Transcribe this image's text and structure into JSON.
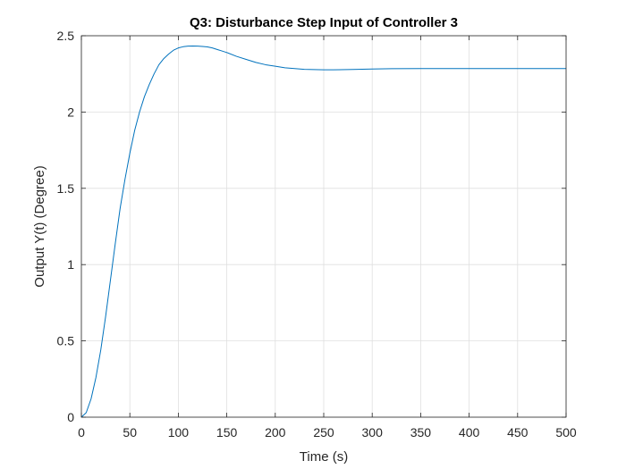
{
  "chart_data": {
    "type": "line",
    "title": "Q3: Disturbance Step Input of Controller 3",
    "xlabel": "Time (s)",
    "ylabel": "Output Y(t) (Degree)",
    "xlim": [
      0,
      500
    ],
    "ylim": [
      0,
      2.5
    ],
    "grid": true,
    "x_ticks": [
      0,
      50,
      100,
      150,
      200,
      250,
      300,
      350,
      400,
      450,
      500
    ],
    "y_ticks": [
      0,
      0.5,
      1,
      1.5,
      2,
      2.5
    ],
    "x_tick_labels": [
      "0",
      "50",
      "100",
      "150",
      "200",
      "250",
      "300",
      "350",
      "400",
      "450",
      "500"
    ],
    "y_tick_labels": [
      "0",
      "0.5",
      "1",
      "1.5",
      "2",
      "2.5"
    ],
    "series": [
      {
        "color": "#0072BD",
        "x": [
          0,
          5,
          10,
          15,
          20,
          25,
          30,
          35,
          40,
          45,
          50,
          55,
          60,
          65,
          70,
          75,
          80,
          85,
          90,
          95,
          100,
          105,
          110,
          115,
          120,
          125,
          130,
          135,
          140,
          145,
          150,
          160,
          170,
          180,
          190,
          200,
          210,
          220,
          230,
          240,
          250,
          260,
          280,
          300,
          320,
          350,
          380,
          400,
          430,
          460,
          500
        ],
        "y": [
          0,
          0.03,
          0.12,
          0.26,
          0.44,
          0.66,
          0.9,
          1.14,
          1.37,
          1.56,
          1.73,
          1.88,
          2.0,
          2.1,
          2.18,
          2.25,
          2.31,
          2.35,
          2.38,
          2.405,
          2.42,
          2.428,
          2.432,
          2.433,
          2.432,
          2.43,
          2.427,
          2.42,
          2.41,
          2.4,
          2.39,
          2.365,
          2.345,
          2.325,
          2.31,
          2.3,
          2.29,
          2.285,
          2.28,
          2.278,
          2.277,
          2.277,
          2.279,
          2.282,
          2.284,
          2.285,
          2.285,
          2.285,
          2.285,
          2.285,
          2.285
        ]
      }
    ]
  }
}
